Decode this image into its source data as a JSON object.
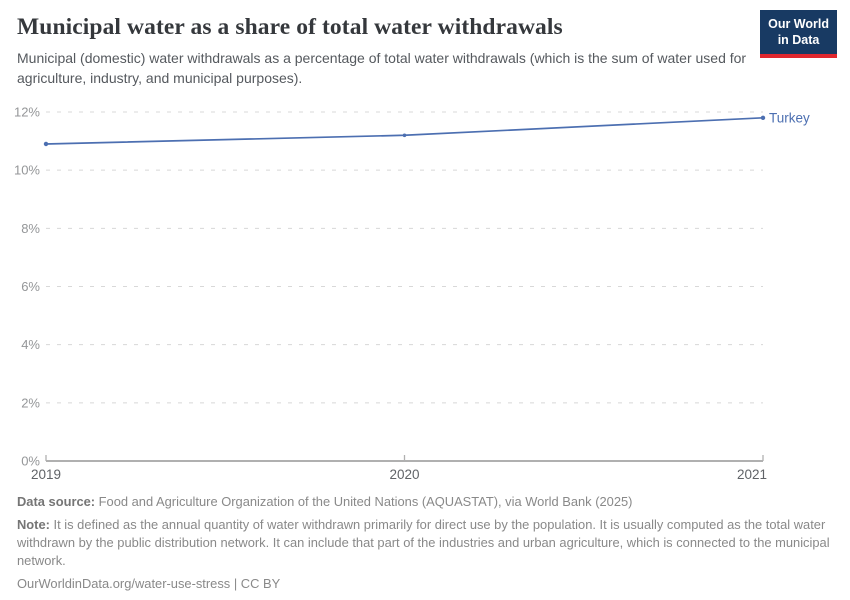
{
  "header": {
    "title": "Municipal water as a share of total water withdrawals",
    "subtitle": "Municipal (domestic) water withdrawals as a percentage of total water withdrawals (which is the sum of water used for agriculture, industry, and municipal purposes)."
  },
  "logo": {
    "line1": "Our World",
    "line2": "in Data",
    "bg_color": "#183a63",
    "accent_color": "#e0272e"
  },
  "chart_data": {
    "type": "line",
    "title": "Municipal water as a share of total water withdrawals",
    "x": [
      2019,
      2020,
      2021
    ],
    "x_tick_labels": [
      "2019",
      "2020",
      "2021"
    ],
    "series": [
      {
        "name": "Turkey",
        "values": [
          10.9,
          11.2,
          11.8
        ],
        "color": "#4c6fb1"
      }
    ],
    "ylim": [
      0,
      12
    ],
    "yticks": [
      0,
      2,
      4,
      6,
      8,
      10,
      12
    ],
    "ytick_suffix": "%",
    "xlabel": "",
    "ylabel": "",
    "grid": "dashed-horizontal",
    "grid_color": "#d8d8d8",
    "axis_color": "#b0b0b0",
    "ytick_label_color": "#949698",
    "xtick_label_color": "#606367",
    "legend_position": "end-of-line-label"
  },
  "footer": {
    "datasource_label": "Data source:",
    "datasource_text": " Food and Agriculture Organization of the United Nations (AQUASTAT), via World Bank (2025)",
    "note_label": "Note:",
    "note_text": " It is defined as the annual quantity of water withdrawn primarily for direct use by the population. It is usually computed as the total water withdrawn by the public distribution network. It can include that part of the industries and urban agriculture, which is connected to the municipal network.",
    "link": "OurWorldinData.org/water-use-stress",
    "separator": " | ",
    "license": "CC BY"
  }
}
